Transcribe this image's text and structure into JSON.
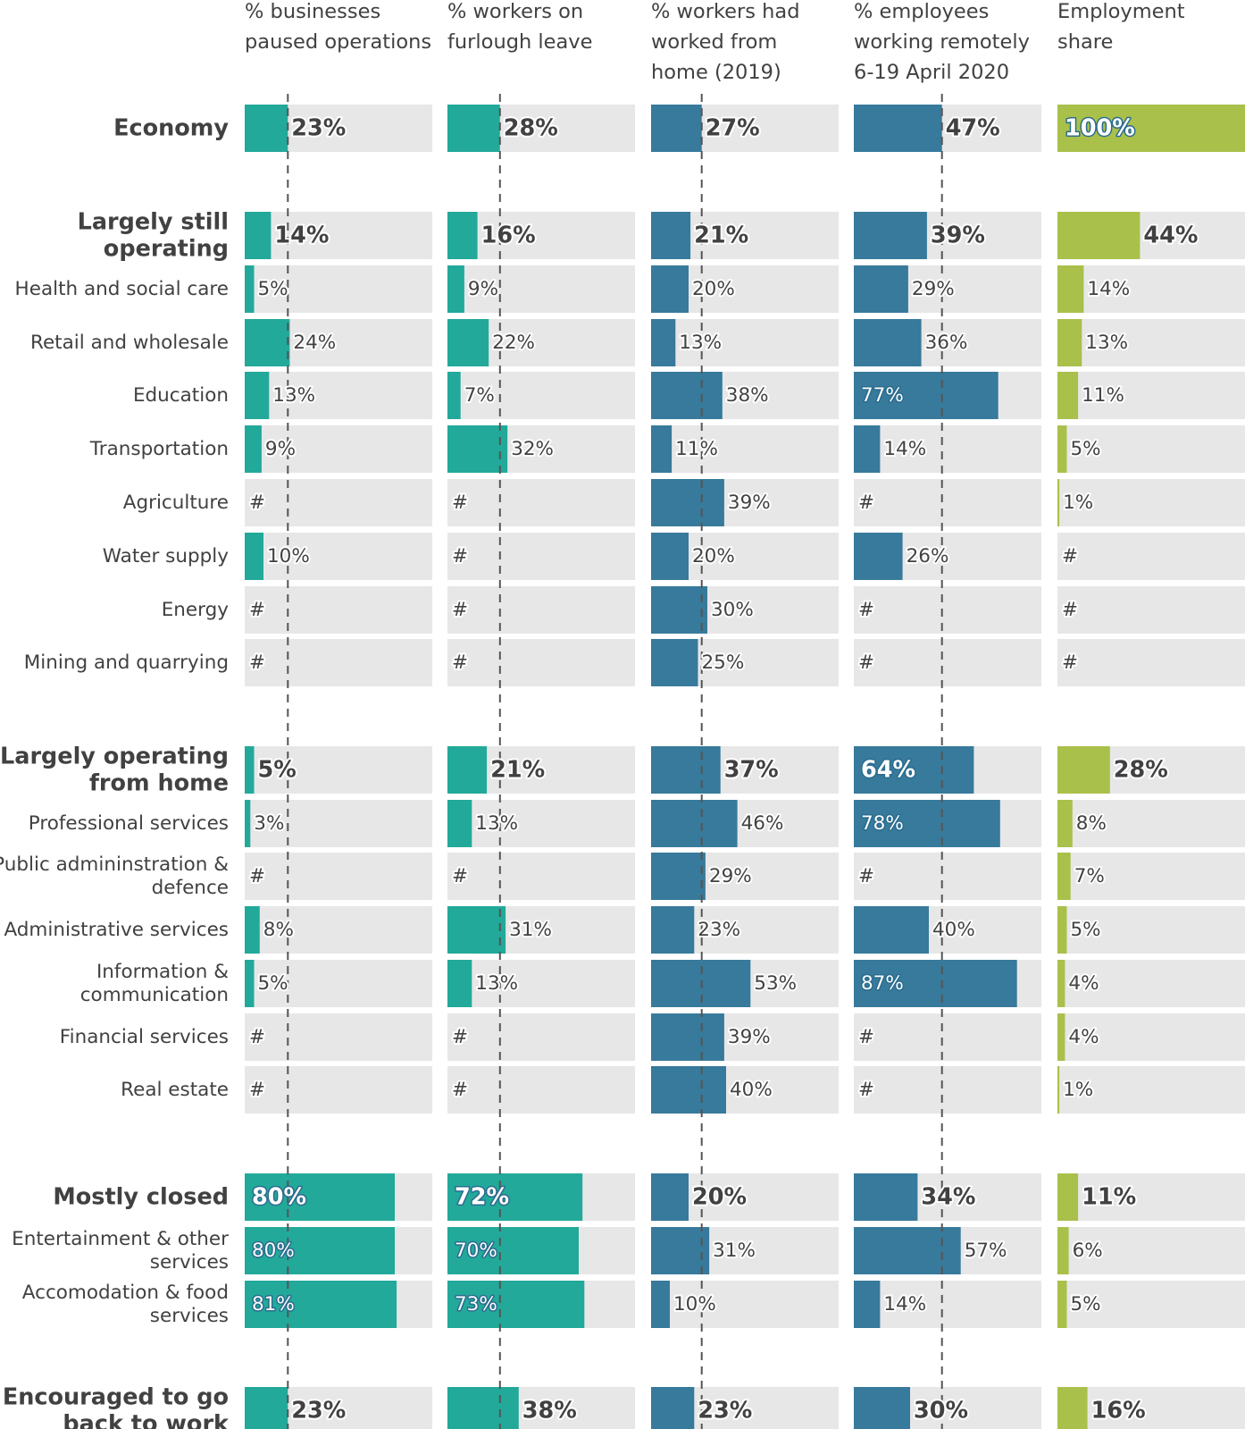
{
  "chart_data": {
    "type": "bar",
    "orientation": "horizontal",
    "columns": [
      {
        "header": [
          "% businesses",
          "paused operations"
        ],
        "color": "#22a99a",
        "reference_line": 23
      },
      {
        "header": [
          "% workers on",
          "furlough leave"
        ],
        "color": "#22a99a",
        "reference_line": 28
      },
      {
        "header": [
          "% workers had",
          "worked from",
          "home (2019)"
        ],
        "color": "#377a9b",
        "reference_line": 27
      },
      {
        "header": [
          "% employees",
          "working remotely",
          "6-19 April 2020"
        ],
        "color": "#377a9b",
        "reference_line": 47
      },
      {
        "header": [
          "Employment",
          "share"
        ],
        "color": "#a9c04a",
        "reference_line": null
      }
    ],
    "xlim": [
      0,
      100
    ],
    "missing_marker": "#",
    "background_color": "#e7e7e8",
    "rows": [
      {
        "label": [
          "Economy"
        ],
        "group_header": true,
        "values": [
          23,
          28,
          27,
          47,
          100
        ]
      },
      {
        "label": [
          "Largely still",
          "operating"
        ],
        "group_header": true,
        "values": [
          14,
          16,
          21,
          39,
          44
        ]
      },
      {
        "label": [
          "Health and social care"
        ],
        "group_header": false,
        "values": [
          5,
          9,
          20,
          29,
          14
        ]
      },
      {
        "label": [
          "Retail and wholesale"
        ],
        "group_header": false,
        "values": [
          24,
          22,
          13,
          36,
          13
        ]
      },
      {
        "label": [
          "Education"
        ],
        "group_header": false,
        "values": [
          13,
          7,
          38,
          77,
          11
        ]
      },
      {
        "label": [
          "Transportation"
        ],
        "group_header": false,
        "values": [
          9,
          32,
          11,
          14,
          5
        ]
      },
      {
        "label": [
          "Agriculture"
        ],
        "group_header": false,
        "values": [
          null,
          null,
          39,
          null,
          1
        ]
      },
      {
        "label": [
          "Water supply"
        ],
        "group_header": false,
        "values": [
          10,
          null,
          20,
          26,
          null
        ]
      },
      {
        "label": [
          "Energy"
        ],
        "group_header": false,
        "values": [
          null,
          null,
          30,
          null,
          null
        ]
      },
      {
        "label": [
          "Mining and quarrying"
        ],
        "group_header": false,
        "values": [
          null,
          null,
          25,
          null,
          null
        ]
      },
      {
        "label": [
          "Largely operating",
          "from home"
        ],
        "group_header": true,
        "values": [
          5,
          21,
          37,
          64,
          28
        ]
      },
      {
        "label": [
          "Professional services"
        ],
        "group_header": false,
        "values": [
          3,
          13,
          46,
          78,
          8
        ]
      },
      {
        "label": [
          "Public admininstration &",
          "defence"
        ],
        "group_header": false,
        "values": [
          null,
          null,
          29,
          null,
          7
        ]
      },
      {
        "label": [
          "Administrative services"
        ],
        "group_header": false,
        "values": [
          8,
          31,
          23,
          40,
          5
        ]
      },
      {
        "label": [
          "Information &",
          "communication"
        ],
        "group_header": false,
        "values": [
          5,
          13,
          53,
          87,
          4
        ]
      },
      {
        "label": [
          "Financial services"
        ],
        "group_header": false,
        "values": [
          null,
          null,
          39,
          null,
          4
        ]
      },
      {
        "label": [
          "Real estate"
        ],
        "group_header": false,
        "values": [
          null,
          null,
          40,
          null,
          1
        ]
      },
      {
        "label": [
          "Mostly closed"
        ],
        "group_header": true,
        "values": [
          80,
          72,
          20,
          34,
          11
        ]
      },
      {
        "label": [
          "Entertainment & other",
          "services"
        ],
        "group_header": false,
        "values": [
          80,
          70,
          31,
          57,
          6
        ]
      },
      {
        "label": [
          "Accomodation & food",
          "services"
        ],
        "group_header": false,
        "values": [
          81,
          73,
          10,
          14,
          5
        ]
      },
      {
        "label": [
          "Encouraged to go",
          "back to work"
        ],
        "group_header": true,
        "values": [
          23,
          38,
          23,
          30,
          16
        ]
      }
    ]
  }
}
